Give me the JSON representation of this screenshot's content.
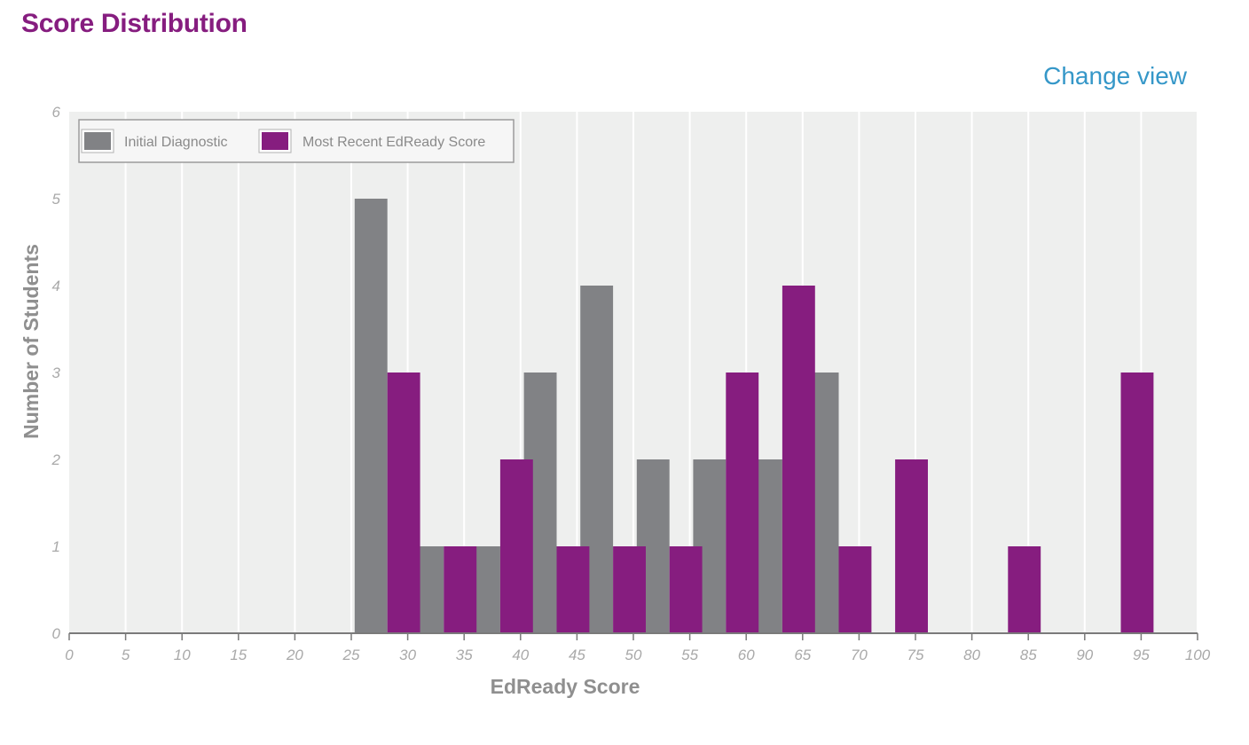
{
  "header": {
    "title": "Score Distribution",
    "change_view_label": "Change view"
  },
  "chart_data": {
    "type": "bar",
    "xlabel": "EdReady Score",
    "ylabel": "Number of Students",
    "xlim": [
      0,
      100
    ],
    "ylim": [
      0,
      6
    ],
    "x_ticks": [
      0,
      5,
      10,
      15,
      20,
      25,
      30,
      35,
      40,
      45,
      50,
      55,
      60,
      65,
      70,
      75,
      80,
      85,
      90,
      95,
      100
    ],
    "y_ticks": [
      0,
      1,
      2,
      3,
      4,
      5,
      6
    ],
    "grid": true,
    "legend_position": "top-left",
    "bin_width": 5,
    "bins": [
      [
        25,
        30
      ],
      [
        30,
        35
      ],
      [
        35,
        40
      ],
      [
        40,
        45
      ],
      [
        45,
        50
      ],
      [
        50,
        55
      ],
      [
        55,
        60
      ],
      [
        60,
        65
      ],
      [
        65,
        70
      ],
      [
        70,
        75
      ],
      [
        75,
        80
      ],
      [
        80,
        85
      ],
      [
        85,
        90
      ],
      [
        90,
        95
      ]
    ],
    "series": [
      {
        "name": "Initial Diagnostic",
        "color": "#818285",
        "values": [
          5,
          1,
          1,
          3,
          4,
          2,
          2,
          2,
          3,
          0,
          0,
          0,
          0,
          0
        ]
      },
      {
        "name": "Most Recent EdReady Score",
        "color": "#861d7f",
        "values": [
          3,
          1,
          2,
          1,
          1,
          1,
          3,
          4,
          1,
          2,
          0,
          1,
          0,
          3
        ]
      }
    ],
    "colors": {
      "plot_background": "#eeefee",
      "grid": "#ffffff",
      "axis": "#7a7a7a"
    }
  }
}
